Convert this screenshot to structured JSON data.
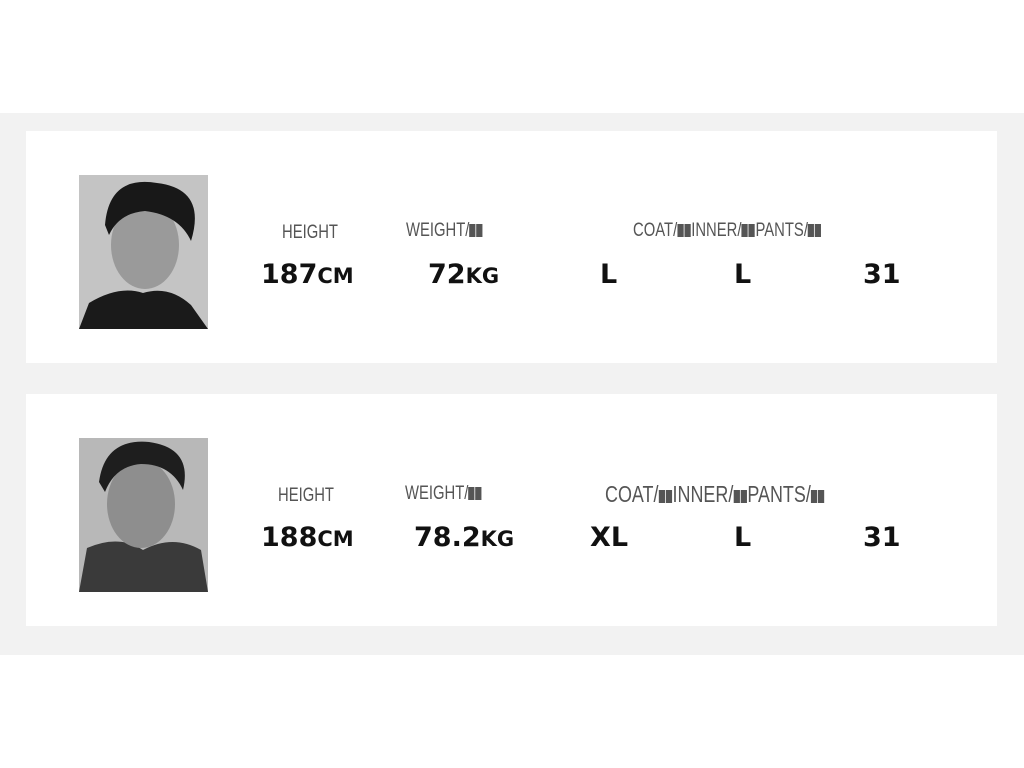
{
  "models": [
    {
      "labels": {
        "height": "HEIGHT",
        "weight": "WEIGHT/",
        "sizes_coat": "COAT/",
        "sizes_inner": "INNER/",
        "sizes_pants": "PANTS/"
      },
      "height": "187",
      "height_unit": "CM",
      "weight": "72",
      "weight_unit": "KG",
      "coat": "L",
      "inner": "L",
      "pants": "31"
    },
    {
      "labels": {
        "height": "HEIGHT",
        "weight": "WEIGHT/",
        "sizes_coat": "COAT/",
        "sizes_inner": "INNER/",
        "sizes_pants": "PANTS/"
      },
      "height": "188",
      "height_unit": "CM",
      "weight": "78.2",
      "weight_unit": "KG",
      "coat": "XL",
      "inner": "L",
      "pants": "31"
    }
  ]
}
